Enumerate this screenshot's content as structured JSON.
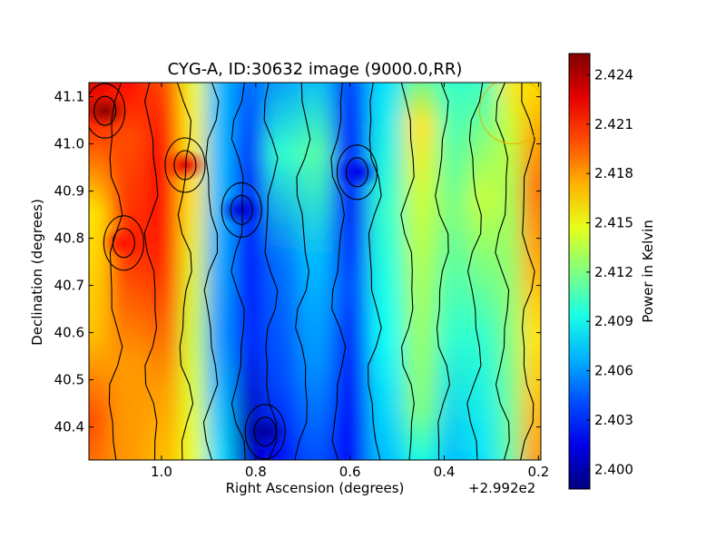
{
  "chart_data": {
    "type": "heatmap",
    "title": "CYG-A, ID:30632 image (9000.0,RR)",
    "xlabel": "Right Ascension (degrees)",
    "ylabel": "Declination (degrees)",
    "x_offset_label": "+2.992e2",
    "colorbar_label": "Power in Kelvin",
    "colormap": "jet",
    "contours": true,
    "xlim": [
      1.154,
      0.195
    ],
    "ylim": [
      40.33,
      41.13
    ],
    "x_ticks": [
      {
        "value": 1.0,
        "label": "1.0"
      },
      {
        "value": 0.8,
        "label": "0.8"
      },
      {
        "value": 0.6,
        "label": "0.6"
      },
      {
        "value": 0.4,
        "label": "0.4"
      },
      {
        "value": 0.2,
        "label": "0.2"
      }
    ],
    "y_ticks": [
      {
        "value": 40.4,
        "label": "40.4"
      },
      {
        "value": 40.5,
        "label": "40.5"
      },
      {
        "value": 40.6,
        "label": "40.6"
      },
      {
        "value": 40.7,
        "label": "40.7"
      },
      {
        "value": 40.8,
        "label": "40.8"
      },
      {
        "value": 40.9,
        "label": "40.9"
      },
      {
        "value": 41.0,
        "label": "41.0"
      },
      {
        "value": 41.1,
        "label": "41.1"
      }
    ],
    "colorbar": {
      "min": 2.3988,
      "max": 2.4253,
      "ticks": [
        {
          "value": 2.4,
          "label": "2.400"
        },
        {
          "value": 2.403,
          "label": "2.403"
        },
        {
          "value": 2.406,
          "label": "2.406"
        },
        {
          "value": 2.409,
          "label": "2.409"
        },
        {
          "value": 2.412,
          "label": "2.412"
        },
        {
          "value": 2.415,
          "label": "2.415"
        },
        {
          "value": 2.418,
          "label": "2.418"
        },
        {
          "value": 2.421,
          "label": "2.421"
        },
        {
          "value": 2.424,
          "label": "2.424"
        }
      ]
    },
    "columns": [
      {
        "ra": 1.14,
        "profile": [
          [
            40.33,
            2.419
          ],
          [
            40.43,
            2.42
          ],
          [
            40.6,
            2.417
          ],
          [
            40.85,
            2.416
          ],
          [
            41.03,
            2.421
          ],
          [
            41.13,
            2.423
          ]
        ]
      },
      {
        "ra": 1.06,
        "profile": [
          [
            40.33,
            2.418
          ],
          [
            40.55,
            2.418
          ],
          [
            40.79,
            2.421
          ],
          [
            41.0,
            2.42
          ],
          [
            41.13,
            2.422
          ]
        ]
      },
      {
        "ra": 0.98,
        "profile": [
          [
            40.33,
            2.417
          ],
          [
            40.5,
            2.418
          ],
          [
            40.75,
            2.421
          ],
          [
            40.95,
            2.422
          ],
          [
            41.13,
            2.42
          ]
        ]
      },
      {
        "ra": 0.92,
        "profile": [
          [
            40.33,
            2.415
          ],
          [
            40.6,
            2.414
          ],
          [
            40.9,
            2.416
          ],
          [
            41.13,
            2.415
          ]
        ]
      },
      {
        "ra": 0.87,
        "profile": [
          [
            40.33,
            2.408
          ],
          [
            40.6,
            2.406
          ],
          [
            40.9,
            2.407
          ],
          [
            41.13,
            2.407
          ]
        ]
      },
      {
        "ra": 0.8,
        "profile": [
          [
            40.33,
            2.401
          ],
          [
            40.39,
            2.4
          ],
          [
            40.6,
            2.403
          ],
          [
            40.85,
            2.402
          ],
          [
            41.13,
            2.405
          ]
        ]
      },
      {
        "ra": 0.74,
        "profile": [
          [
            40.33,
            2.402
          ],
          [
            40.5,
            2.404
          ],
          [
            40.75,
            2.405
          ],
          [
            40.97,
            2.41
          ],
          [
            41.13,
            2.406
          ]
        ]
      },
      {
        "ra": 0.66,
        "profile": [
          [
            40.33,
            2.404
          ],
          [
            40.55,
            2.406
          ],
          [
            40.75,
            2.407
          ],
          [
            40.97,
            2.411
          ],
          [
            41.13,
            2.407
          ]
        ]
      },
      {
        "ra": 0.59,
        "profile": [
          [
            40.33,
            2.402
          ],
          [
            40.42,
            2.402
          ],
          [
            40.7,
            2.404
          ],
          [
            40.93,
            2.402
          ],
          [
            41.13,
            2.404
          ]
        ]
      },
      {
        "ra": 0.51,
        "profile": [
          [
            40.33,
            2.407
          ],
          [
            40.6,
            2.409
          ],
          [
            40.85,
            2.41
          ],
          [
            41.13,
            2.408
          ]
        ]
      },
      {
        "ra": 0.44,
        "profile": [
          [
            40.33,
            2.409
          ],
          [
            40.45,
            2.412
          ],
          [
            40.7,
            2.413
          ],
          [
            40.88,
            2.414
          ],
          [
            41.03,
            2.416
          ],
          [
            41.13,
            2.411
          ]
        ]
      },
      {
        "ra": 0.37,
        "profile": [
          [
            40.33,
            2.407
          ],
          [
            40.6,
            2.41
          ],
          [
            40.85,
            2.412
          ],
          [
            41.13,
            2.41
          ]
        ]
      },
      {
        "ra": 0.3,
        "profile": [
          [
            40.33,
            2.408
          ],
          [
            40.6,
            2.41
          ],
          [
            40.88,
            2.414
          ],
          [
            41.13,
            2.41
          ]
        ]
      },
      {
        "ra": 0.25,
        "profile": [
          [
            40.33,
            2.411
          ],
          [
            40.6,
            2.412
          ],
          [
            40.9,
            2.413
          ],
          [
            41.02,
            2.414
          ],
          [
            41.13,
            2.416
          ]
        ]
      },
      {
        "ra": 0.2,
        "profile": [
          [
            40.33,
            2.418
          ],
          [
            40.6,
            2.416
          ],
          [
            40.9,
            2.419
          ],
          [
            41.13,
            2.416
          ]
        ]
      }
    ],
    "blobs": [
      {
        "ra": 1.12,
        "dec": 41.07,
        "peak": 2.425
      },
      {
        "ra": 0.78,
        "dec": 40.39,
        "peak": 2.3995
      },
      {
        "ra": 0.83,
        "dec": 40.86,
        "peak": 2.401
      },
      {
        "ra": 0.585,
        "dec": 40.94,
        "peak": 2.4015
      },
      {
        "ra": 0.95,
        "dec": 40.955,
        "peak": 2.4225
      },
      {
        "ra": 1.08,
        "dec": 40.79,
        "peak": 2.4215
      }
    ],
    "circle_marker": {
      "ra": 0.255,
      "dec": 41.07,
      "radius_deg": 0.07
    }
  }
}
